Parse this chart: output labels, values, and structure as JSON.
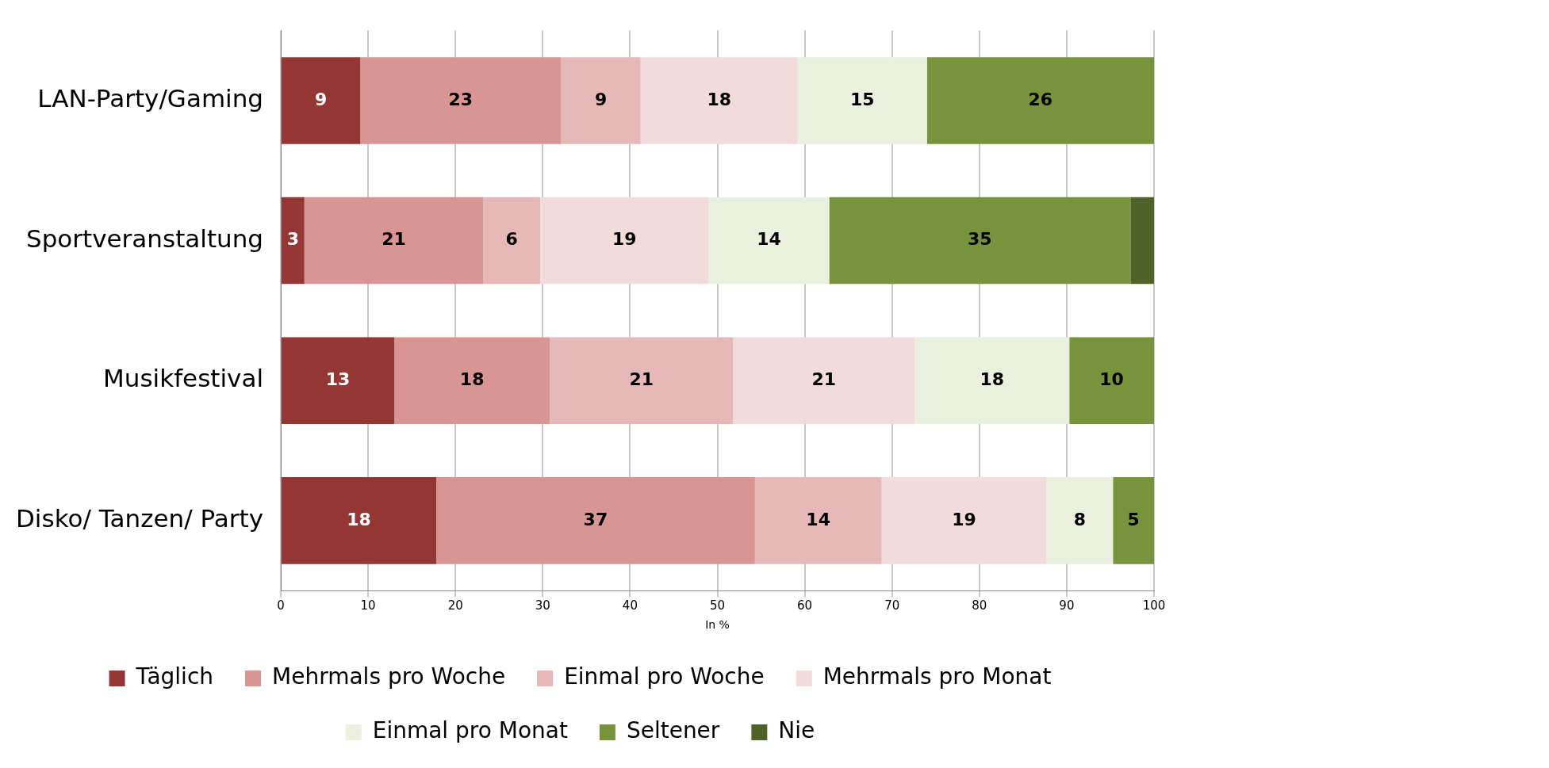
{
  "chart_data": {
    "type": "bar",
    "orientation": "horizontal",
    "stacked": true,
    "xlabel": "In %",
    "categories": [
      "LAN-Party/Gaming",
      "Sportveranstaltung",
      "Musikfestival",
      "Disko/ Tanzen/ Party"
    ],
    "series": [
      {
        "name": "Täglich",
        "color": "#943634",
        "values": [
          9.1,
          2.7,
          13,
          17.8
        ],
        "value_labels": [
          "9",
          "3",
          "13",
          "18"
        ]
      },
      {
        "name": "Mehrmals pro Woche",
        "color": "#d99594",
        "values": [
          23,
          20.5,
          17.8,
          36.5
        ],
        "value_labels": [
          "23",
          "21",
          "18",
          "37"
        ]
      },
      {
        "name": "Einmal pro Woche",
        "color": "#e6b8b7",
        "values": [
          9.1,
          6.5,
          21,
          14.5
        ],
        "value_labels": [
          "9",
          "6",
          "21",
          "14"
        ]
      },
      {
        "name": "Mehrmals pro Monat",
        "color": "#f2dcdb",
        "values": [
          18,
          19.3,
          20.8,
          18.9
        ],
        "value_labels": [
          "18",
          "19",
          "21",
          "19"
        ]
      },
      {
        "name": "Einmal pro Monat",
        "color": "#ebf1de",
        "values": [
          14.8,
          13.8,
          17.7,
          7.6
        ],
        "value_labels": [
          "15",
          "14",
          "18",
          "8"
        ]
      },
      {
        "name": "Seltener",
        "color": "#77933c",
        "values": [
          26,
          34.5,
          9.7,
          4.7
        ],
        "value_labels": [
          "26",
          "35",
          "10",
          "5"
        ]
      },
      {
        "name": "Nie",
        "color": "#4f6228",
        "values": [
          0,
          2.7,
          0,
          0
        ],
        "value_labels": [
          null,
          null,
          null,
          null
        ]
      }
    ],
    "xlim": [
      0,
      100
    ],
    "xticks": [
      0,
      10,
      20,
      30,
      40,
      50,
      60,
      70,
      80,
      90,
      100
    ],
    "grid": "x",
    "legend": "bottom"
  }
}
